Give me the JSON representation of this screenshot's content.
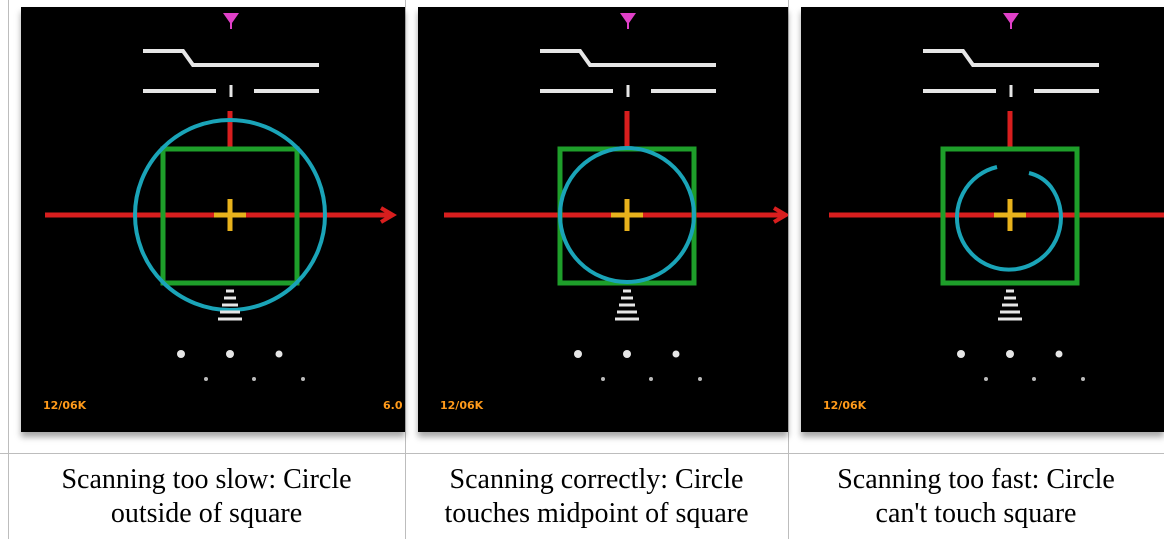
{
  "panels": [
    {
      "caption_line1": "Scanning too slow: Circle",
      "caption_line2": "outside of square",
      "scan_label": "12/06K",
      "side_label": "6.0",
      "circle": "outside"
    },
    {
      "caption_line1": "Scanning correctly: Circle",
      "caption_line2": "touches midpoint of square",
      "scan_label": "12/06K",
      "side_label": "",
      "circle": "touching"
    },
    {
      "caption_line1": "Scanning too fast: Circle",
      "caption_line2": "can't touch square",
      "scan_label": "12/06K",
      "side_label": "",
      "circle": "inside"
    }
  ],
  "colors": {
    "background": "#000000",
    "crosshair": "#d81e1e",
    "square": "#1e9e2a",
    "circle": "#1aa4b8",
    "center_cross": "#e8b21c",
    "top_marker": "#e040c8",
    "hud_white": "#e6e6e6",
    "scan_label": "#ff9a1a"
  }
}
